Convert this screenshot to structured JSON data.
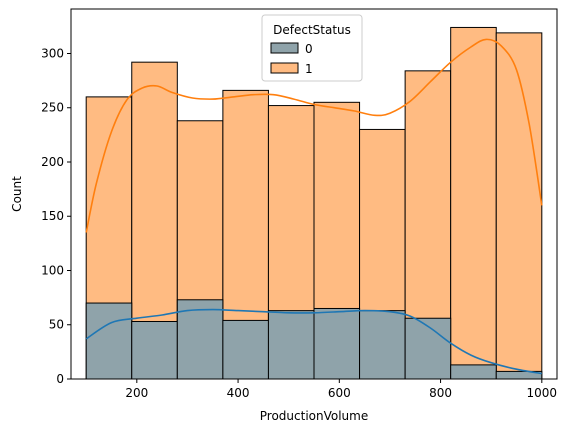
{
  "chart_data": {
    "type": "bar",
    "stacked": true,
    "xlabel": "ProductionVolume",
    "ylabel": "Count",
    "xlim": [
      70,
      1030
    ],
    "ylim": [
      0,
      341
    ],
    "xticks": [
      200,
      400,
      600,
      800,
      1000
    ],
    "yticks": [
      0,
      50,
      100,
      150,
      200,
      250,
      300
    ],
    "bin_edges": [
      100,
      190,
      280,
      370,
      460,
      550,
      640,
      730,
      820,
      910,
      1000
    ],
    "legend": {
      "title": "DefectStatus",
      "position": "top-center"
    },
    "series": [
      {
        "name": "0",
        "color": "#1f77b4",
        "fill": "#8fa3aa",
        "values": [
          70,
          53,
          73,
          54,
          63,
          65,
          63,
          56,
          13,
          7
        ],
        "kde": [
          [
            100,
            37
          ],
          [
            150,
            52
          ],
          [
            200,
            56
          ],
          [
            250,
            59
          ],
          [
            300,
            63
          ],
          [
            350,
            64
          ],
          [
            400,
            63
          ],
          [
            450,
            62
          ],
          [
            500,
            61
          ],
          [
            550,
            61
          ],
          [
            600,
            62
          ],
          [
            650,
            63
          ],
          [
            700,
            62
          ],
          [
            740,
            58
          ],
          [
            780,
            47
          ],
          [
            820,
            33
          ],
          [
            860,
            22
          ],
          [
            900,
            15
          ],
          [
            950,
            9
          ],
          [
            1000,
            5
          ]
        ]
      },
      {
        "name": "1",
        "color": "#ff7f0e",
        "fill": "#ffbb82",
        "values": [
          260,
          292,
          238,
          266,
          252,
          255,
          230,
          284,
          324,
          319
        ],
        "kde": [
          [
            100,
            135
          ],
          [
            120,
            180
          ],
          [
            150,
            228
          ],
          [
            180,
            257
          ],
          [
            210,
            268
          ],
          [
            240,
            270
          ],
          [
            270,
            264
          ],
          [
            310,
            259
          ],
          [
            350,
            258
          ],
          [
            390,
            260
          ],
          [
            430,
            262
          ],
          [
            470,
            262
          ],
          [
            510,
            258
          ],
          [
            550,
            253
          ],
          [
            590,
            250
          ],
          [
            630,
            247
          ],
          [
            670,
            243
          ],
          [
            700,
            245
          ],
          [
            740,
            256
          ],
          [
            780,
            274
          ],
          [
            820,
            292
          ],
          [
            860,
            306
          ],
          [
            890,
            313
          ],
          [
            920,
            307
          ],
          [
            950,
            285
          ],
          [
            975,
            235
          ],
          [
            1000,
            160
          ]
        ]
      }
    ]
  }
}
